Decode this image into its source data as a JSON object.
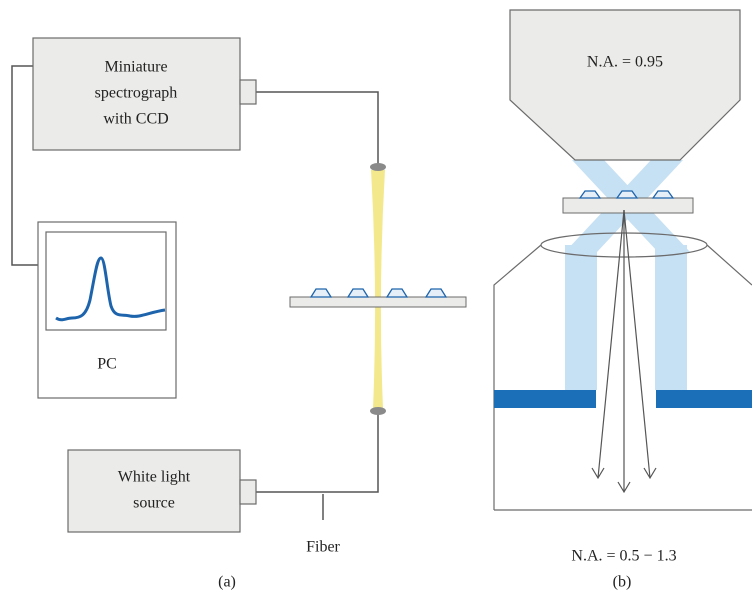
{
  "panel_a": {
    "spectrograph": {
      "lines": [
        "Miniature",
        "spectrograph",
        "with CCD"
      ]
    },
    "pc": {
      "label": "PC"
    },
    "light_source": {
      "lines": [
        "White light",
        "source"
      ]
    },
    "fiber_label": "Fiber",
    "caption": "(a)"
  },
  "panel_b": {
    "objective_na": "N.A. = 0.95",
    "lower_na": "N.A. = 0.5 − 1.3",
    "caption": "(b)"
  }
}
